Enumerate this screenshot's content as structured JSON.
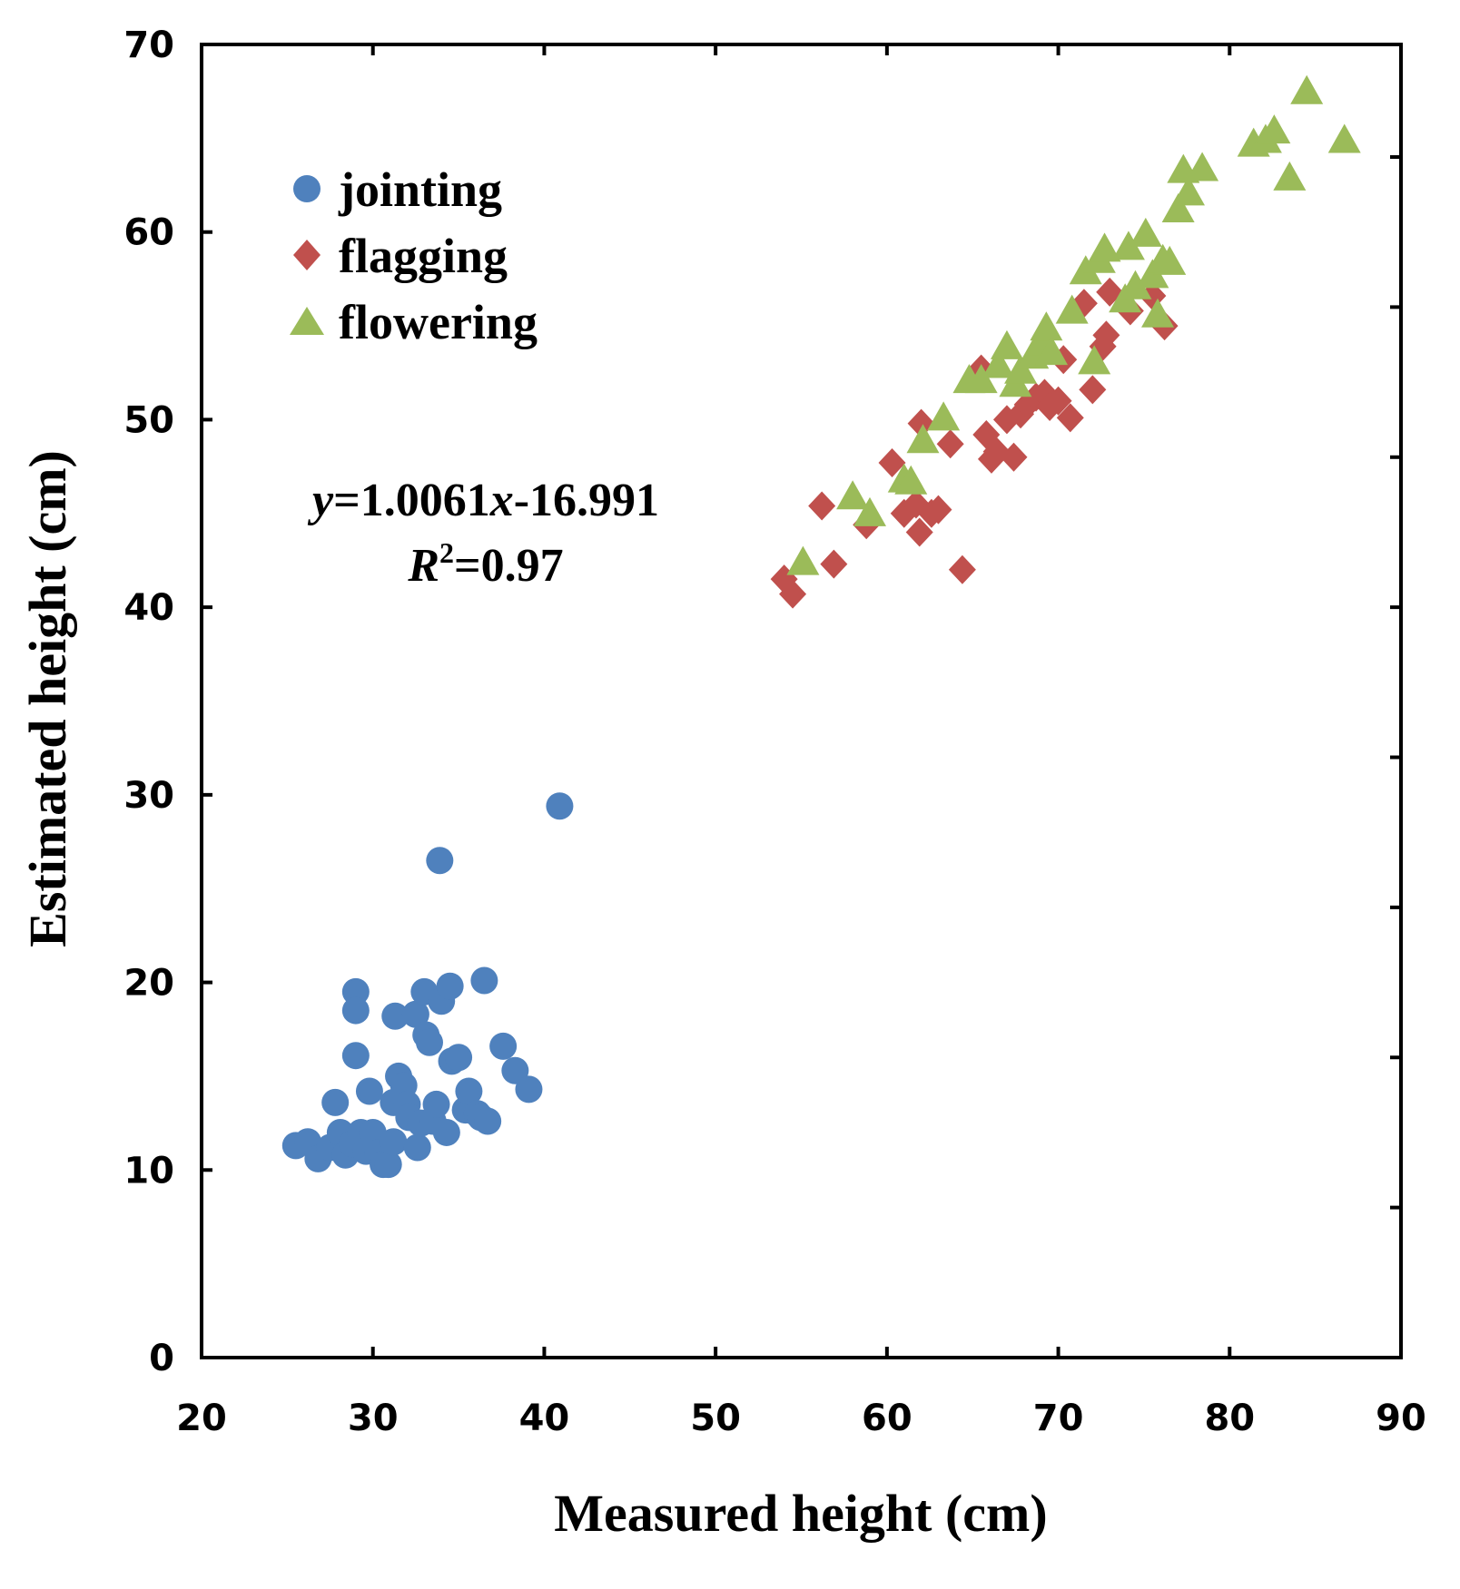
{
  "chart_data": {
    "type": "scatter",
    "title": "",
    "xlabel": "Measured height (cm)",
    "ylabel": "Estimated height (cm)",
    "xlim": [
      20,
      90
    ],
    "ylim": [
      0,
      70
    ],
    "x_ticks": [
      20,
      30,
      40,
      50,
      60,
      70,
      80,
      90
    ],
    "y_ticks": [
      0,
      10,
      20,
      30,
      40,
      50,
      60,
      70
    ],
    "grid": false,
    "legend_position": "top-left",
    "annotation": {
      "equation_y": "y",
      "equation_rest": "=1.0061",
      "equation_x": "x",
      "equation_tail": "-16.991",
      "r2_symbol": "R",
      "r2_sup": "2",
      "r2_value": "=0.97"
    },
    "series": [
      {
        "name": "jointing",
        "marker": "circle",
        "color": "#4f81bd",
        "points": [
          [
            25.5,
            11.3
          ],
          [
            26.2,
            11.5
          ],
          [
            26.8,
            10.6
          ],
          [
            27.5,
            11.2
          ],
          [
            27.8,
            13.6
          ],
          [
            28.1,
            12.0
          ],
          [
            28.4,
            10.8
          ],
          [
            28.8,
            11.4
          ],
          [
            29.0,
            19.5
          ],
          [
            29.0,
            18.5
          ],
          [
            29.0,
            16.1
          ],
          [
            29.3,
            12.0
          ],
          [
            29.6,
            11.0
          ],
          [
            29.8,
            14.2
          ],
          [
            30.0,
            12.0
          ],
          [
            30.3,
            10.9
          ],
          [
            30.6,
            10.3
          ],
          [
            30.9,
            10.3
          ],
          [
            31.2,
            11.5
          ],
          [
            31.2,
            13.6
          ],
          [
            31.3,
            18.2
          ],
          [
            31.5,
            15.0
          ],
          [
            31.8,
            14.5
          ],
          [
            32.0,
            13.5
          ],
          [
            32.1,
            12.8
          ],
          [
            32.5,
            18.3
          ],
          [
            32.6,
            11.2
          ],
          [
            32.8,
            12.5
          ],
          [
            33.0,
            19.5
          ],
          [
            33.1,
            17.2
          ],
          [
            33.3,
            16.8
          ],
          [
            33.5,
            12.6
          ],
          [
            33.7,
            13.5
          ],
          [
            33.9,
            26.5
          ],
          [
            34.0,
            19.0
          ],
          [
            34.3,
            12.0
          ],
          [
            34.5,
            19.8
          ],
          [
            34.6,
            15.8
          ],
          [
            35.0,
            16.0
          ],
          [
            35.4,
            13.2
          ],
          [
            35.6,
            14.2
          ],
          [
            36.1,
            13.0
          ],
          [
            36.3,
            12.8
          ],
          [
            36.5,
            20.1
          ],
          [
            36.7,
            12.6
          ],
          [
            37.6,
            16.6
          ],
          [
            38.3,
            15.3
          ],
          [
            39.1,
            14.3
          ],
          [
            40.9,
            29.4
          ]
        ]
      },
      {
        "name": "flagging",
        "marker": "diamond",
        "color": "#c0504d",
        "points": [
          [
            54.0,
            41.5
          ],
          [
            54.5,
            40.7
          ],
          [
            56.2,
            45.4
          ],
          [
            56.9,
            42.3
          ],
          [
            58.8,
            44.4
          ],
          [
            60.3,
            47.7
          ],
          [
            61.0,
            45.0
          ],
          [
            61.7,
            45.5
          ],
          [
            61.9,
            44.0
          ],
          [
            62.0,
            49.8
          ],
          [
            62.6,
            45.0
          ],
          [
            63.0,
            45.2
          ],
          [
            63.7,
            48.7
          ],
          [
            64.4,
            42.0
          ],
          [
            65.5,
            52.7
          ],
          [
            65.8,
            49.2
          ],
          [
            66.1,
            47.9
          ],
          [
            66.4,
            48.3
          ],
          [
            67.0,
            50.0
          ],
          [
            67.4,
            48.0
          ],
          [
            67.8,
            50.3
          ],
          [
            68.2,
            50.8
          ],
          [
            68.7,
            51.2
          ],
          [
            69.2,
            51.4
          ],
          [
            69.5,
            50.7
          ],
          [
            70.0,
            51.0
          ],
          [
            70.3,
            53.2
          ],
          [
            70.7,
            50.1
          ],
          [
            71.5,
            56.2
          ],
          [
            72.0,
            51.6
          ],
          [
            72.6,
            53.9
          ],
          [
            72.8,
            54.5
          ],
          [
            73.0,
            56.8
          ],
          [
            74.2,
            55.8
          ],
          [
            75.5,
            56.6
          ],
          [
            76.2,
            55.0
          ]
        ]
      },
      {
        "name": "flowering",
        "marker": "triangle",
        "color": "#9bbb59",
        "points": [
          [
            55.1,
            42.3
          ],
          [
            58.0,
            45.8
          ],
          [
            59.0,
            44.9
          ],
          [
            61.0,
            46.7
          ],
          [
            61.4,
            46.6
          ],
          [
            62.1,
            48.8
          ],
          [
            63.3,
            50.0
          ],
          [
            64.8,
            52.0
          ],
          [
            65.5,
            52.0
          ],
          [
            66.5,
            52.8
          ],
          [
            67.0,
            53.8
          ],
          [
            67.5,
            51.8
          ],
          [
            67.8,
            52.5
          ],
          [
            68.5,
            53.3
          ],
          [
            69.0,
            54.0
          ],
          [
            69.3,
            54.8
          ],
          [
            69.6,
            53.5
          ],
          [
            70.8,
            55.7
          ],
          [
            71.6,
            57.8
          ],
          [
            72.1,
            53.0
          ],
          [
            72.4,
            58.4
          ],
          [
            72.7,
            59.0
          ],
          [
            73.9,
            56.3
          ],
          [
            74.1,
            59.1
          ],
          [
            74.5,
            57.0
          ],
          [
            75.1,
            59.8
          ],
          [
            75.5,
            57.6
          ],
          [
            75.8,
            55.5
          ],
          [
            76.1,
            58.4
          ],
          [
            76.5,
            58.3
          ],
          [
            77.0,
            61.1
          ],
          [
            77.3,
            63.2
          ],
          [
            77.6,
            62.0
          ],
          [
            78.4,
            63.3
          ],
          [
            81.4,
            64.6
          ],
          [
            82.1,
            64.8
          ],
          [
            82.6,
            65.3
          ],
          [
            83.5,
            62.8
          ],
          [
            84.5,
            67.4
          ],
          [
            86.7,
            64.8
          ]
        ]
      }
    ]
  }
}
